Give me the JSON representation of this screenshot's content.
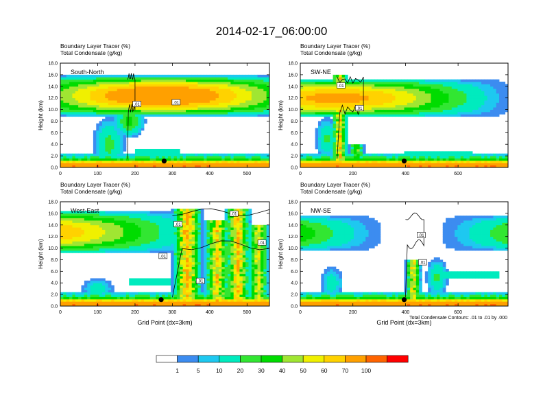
{
  "figure": {
    "title": "2014-02-17_06:00:00",
    "contour_note": "Total Condensate Contours: .01 to .01 by .000"
  },
  "chart_data": [
    {
      "type": "heatmap",
      "panel": "South-North",
      "label": "South-North",
      "var1": "Boundary Layer Tracer    (%)",
      "var2": "Total Condensate   (g/kg)",
      "ylabel": "Height (km)",
      "xlabel": "",
      "ylim": [
        0,
        18
      ],
      "xlim": [
        0,
        560
      ],
      "xticks": [
        0,
        100,
        200,
        300,
        400,
        500
      ],
      "yticks": [
        0,
        2,
        4,
        6,
        8,
        10,
        12,
        14,
        16,
        18
      ],
      "marker": {
        "x": 278,
        "y": 1.1
      },
      "contour_labels": [
        {
          "text": ".01",
          "x": 205,
          "y": 10.9
        },
        {
          "text": ".01",
          "x": 310,
          "y": 11.2
        }
      ]
    },
    {
      "type": "heatmap",
      "panel": "SW-NE",
      "label": "SW-NE",
      "var1": "Boundary Layer Tracer    (%)",
      "var2": "Total Condensate   (g/kg)",
      "ylabel": "Height (km)",
      "xlabel": "",
      "ylim": [
        0,
        18
      ],
      "xlim": [
        0,
        790
      ],
      "xticks": [
        0,
        200,
        400,
        600
      ],
      "yticks": [
        0,
        2,
        4,
        6,
        8,
        10,
        12,
        14,
        16,
        18
      ],
      "marker": {
        "x": 395,
        "y": 1.1
      },
      "contour_labels": [
        {
          "text": ".01",
          "x": 155,
          "y": 14.1
        },
        {
          "text": ".01",
          "x": 225,
          "y": 10.2
        }
      ]
    },
    {
      "type": "heatmap",
      "panel": "West-East",
      "label": "West-East",
      "var1": "Boundary Layer Tracer    (%)",
      "var2": "Total Condensate   (g/kg)",
      "ylabel": "Height (km)",
      "xlabel": "Grid Point (dx=3km)",
      "ylim": [
        0,
        18
      ],
      "xlim": [
        0,
        560
      ],
      "xticks": [
        0,
        100,
        200,
        300,
        400,
        500
      ],
      "yticks": [
        0,
        2,
        4,
        6,
        8,
        10,
        12,
        14,
        16,
        18
      ],
      "marker": {
        "x": 270,
        "y": 1.1
      },
      "contour_labels": [
        {
          "text": ".01",
          "x": 315,
          "y": 14.1
        },
        {
          "text": ".01",
          "x": 465,
          "y": 15.9
        },
        {
          "text": ".01",
          "x": 540,
          "y": 10.9
        },
        {
          "text": ".01",
          "x": 275,
          "y": 8.6
        },
        {
          "text": ".01",
          "x": 375,
          "y": 4.3
        }
      ]
    },
    {
      "type": "heatmap",
      "panel": "NW-SE",
      "label": "NW-SE",
      "var1": "Boundary Layer Tracer    (%)",
      "var2": "Total Condensate   (g/kg)",
      "ylabel": "Height (km)",
      "xlabel": "Grid Point (dx=3km)",
      "ylim": [
        0,
        18
      ],
      "xlim": [
        0,
        790
      ],
      "xticks": [
        0,
        200,
        400,
        600
      ],
      "yticks": [
        0,
        2,
        4,
        6,
        8,
        10,
        12,
        14,
        16,
        18
      ],
      "marker": {
        "x": 395,
        "y": 1.1
      },
      "contour_labels": [
        {
          "text": ".01",
          "x": 460,
          "y": 12.2
        },
        {
          "text": ".01",
          "x": 465,
          "y": 7.5
        }
      ]
    }
  ],
  "colorbar": {
    "labels": [
      "1",
      "5",
      "10",
      "20",
      "30",
      "40",
      "50",
      "60",
      "70",
      "100"
    ],
    "colors": [
      "#ffffff",
      "#3c8cf0",
      "#1ec8f0",
      "#00ebbe",
      "#32e632",
      "#00dc00",
      "#a0e632",
      "#f0f000",
      "#ffd200",
      "#ffa000",
      "#ff6400",
      "#ff0000"
    ]
  }
}
